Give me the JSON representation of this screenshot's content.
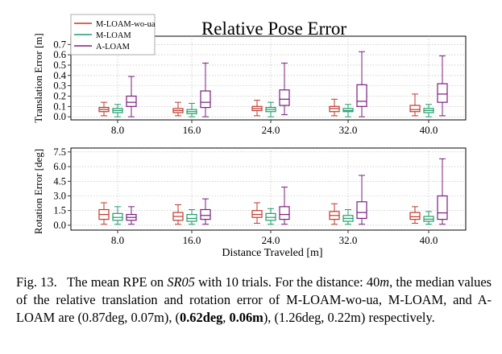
{
  "chart_data": [
    {
      "type": "boxplot",
      "title": "Relative Pose Error",
      "xlabel": "",
      "ylabel": "Translation Error [m]",
      "categories": [
        "8.0",
        "16.0",
        "24.0",
        "32.0",
        "40.0"
      ],
      "yticks": [
        "0.0",
        "0.1",
        "0.2",
        "0.3",
        "0.4",
        "0.5",
        "0.6",
        "0.7"
      ],
      "ylim": [
        -0.03,
        0.78
      ],
      "grid": true,
      "legend_position": "top-left",
      "series": [
        {
          "name": "M-LOAM-wo-ua",
          "color": "#c0392b",
          "boxes": [
            {
              "min": 0.01,
              "q1": 0.05,
              "median": 0.07,
              "q3": 0.09,
              "max": 0.14
            },
            {
              "min": 0.01,
              "q1": 0.04,
              "median": 0.06,
              "q3": 0.08,
              "max": 0.14
            },
            {
              "min": 0.01,
              "q1": 0.06,
              "median": 0.08,
              "q3": 0.1,
              "max": 0.16
            },
            {
              "min": 0.01,
              "q1": 0.05,
              "median": 0.08,
              "q3": 0.1,
              "max": 0.17
            },
            {
              "min": 0.01,
              "q1": 0.05,
              "median": 0.07,
              "q3": 0.11,
              "max": 0.22
            }
          ]
        },
        {
          "name": "M-LOAM",
          "color": "#1e9e6a",
          "boxes": [
            {
              "min": 0.0,
              "q1": 0.04,
              "median": 0.06,
              "q3": 0.08,
              "max": 0.12
            },
            {
              "min": 0.0,
              "q1": 0.03,
              "median": 0.05,
              "q3": 0.07,
              "max": 0.13
            },
            {
              "min": 0.0,
              "q1": 0.05,
              "median": 0.07,
              "q3": 0.09,
              "max": 0.14
            },
            {
              "min": 0.0,
              "q1": 0.05,
              "median": 0.06,
              "q3": 0.08,
              "max": 0.12
            },
            {
              "min": 0.0,
              "q1": 0.04,
              "median": 0.06,
              "q3": 0.08,
              "max": 0.12
            }
          ]
        },
        {
          "name": "A-LOAM",
          "color": "#7b1d7e",
          "boxes": [
            {
              "min": 0.0,
              "q1": 0.1,
              "median": 0.14,
              "q3": 0.2,
              "max": 0.39
            },
            {
              "min": 0.0,
              "q1": 0.09,
              "median": 0.14,
              "q3": 0.25,
              "max": 0.52
            },
            {
              "min": 0.02,
              "q1": 0.11,
              "median": 0.17,
              "q3": 0.26,
              "max": 0.52
            },
            {
              "min": 0.0,
              "q1": 0.1,
              "median": 0.15,
              "q3": 0.31,
              "max": 0.63
            },
            {
              "min": 0.01,
              "q1": 0.14,
              "median": 0.22,
              "q3": 0.32,
              "max": 0.59
            }
          ]
        }
      ]
    },
    {
      "type": "boxplot",
      "title": "",
      "xlabel": "Distance Traveled [m]",
      "ylabel": "Rotation Error [deg]",
      "categories": [
        "8.0",
        "16.0",
        "24.0",
        "32.0",
        "40.0"
      ],
      "yticks": [
        "0.0",
        "1.5",
        "3.0",
        "4.5",
        "6.0",
        "7.5"
      ],
      "ylim": [
        -0.5,
        7.9
      ],
      "grid": true,
      "series": [
        {
          "name": "M-LOAM-wo-ua",
          "color": "#c0392b",
          "boxes": [
            {
              "min": 0.1,
              "q1": 0.6,
              "median": 1.1,
              "q3": 1.6,
              "max": 2.3
            },
            {
              "min": 0.1,
              "q1": 0.5,
              "median": 0.9,
              "q3": 1.3,
              "max": 2.1
            },
            {
              "min": 0.2,
              "q1": 0.8,
              "median": 1.1,
              "q3": 1.5,
              "max": 2.3
            },
            {
              "min": 0.1,
              "q1": 0.6,
              "median": 1.0,
              "q3": 1.4,
              "max": 2.2
            },
            {
              "min": 0.2,
              "q1": 0.6,
              "median": 0.87,
              "q3": 1.3,
              "max": 1.9
            }
          ]
        },
        {
          "name": "M-LOAM",
          "color": "#1e9e6a",
          "boxes": [
            {
              "min": 0.1,
              "q1": 0.5,
              "median": 0.8,
              "q3": 1.2,
              "max": 1.9
            },
            {
              "min": 0.1,
              "q1": 0.4,
              "median": 0.7,
              "q3": 1.1,
              "max": 1.6
            },
            {
              "min": 0.1,
              "q1": 0.5,
              "median": 0.8,
              "q3": 1.2,
              "max": 1.7
            },
            {
              "min": 0.1,
              "q1": 0.4,
              "median": 0.7,
              "q3": 1.0,
              "max": 1.6
            },
            {
              "min": 0.1,
              "q1": 0.4,
              "median": 0.62,
              "q3": 0.9,
              "max": 1.4
            }
          ]
        },
        {
          "name": "A-LOAM",
          "color": "#7b1d7e",
          "boxes": [
            {
              "min": 0.1,
              "q1": 0.5,
              "median": 0.8,
              "q3": 1.1,
              "max": 1.9
            },
            {
              "min": 0.1,
              "q1": 0.6,
              "median": 1.0,
              "q3": 1.6,
              "max": 2.7
            },
            {
              "min": 0.1,
              "q1": 0.6,
              "median": 1.1,
              "q3": 1.9,
              "max": 3.9
            },
            {
              "min": 0.1,
              "q1": 0.7,
              "median": 1.3,
              "q3": 2.4,
              "max": 5.1
            },
            {
              "min": 0.1,
              "q1": 0.6,
              "median": 1.26,
              "q3": 3.0,
              "max": 6.8
            }
          ]
        }
      ]
    }
  ],
  "caption": {
    "label": "Fig. 13.",
    "t1": "The mean RPE on ",
    "dataset": "SR05",
    "t2": " with 10 trials. For the distance: ",
    "dist_num": "40",
    "dist_unit": "m",
    "t3": ", the median values of the relative translation and rotation error of M-LOAM-wo-ua, M-LOAM, and A-LOAM are (0.87deg, 0.07m), (",
    "bold1": "0.62deg",
    "t4": ", ",
    "bold2": "0.06m",
    "t5": "), (1.26deg, 0.22m) respectively."
  }
}
